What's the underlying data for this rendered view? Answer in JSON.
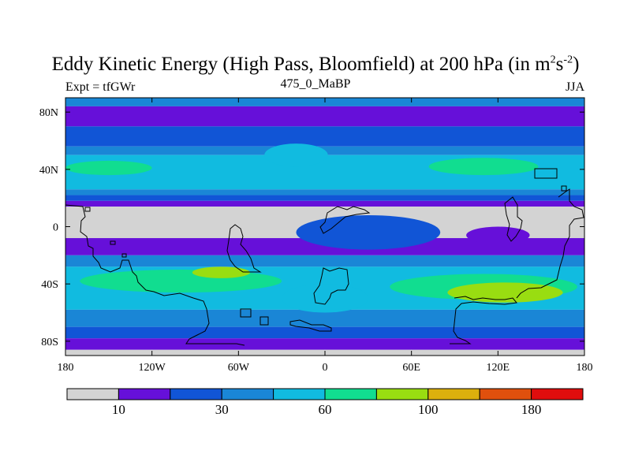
{
  "chart_data": {
    "type": "heatmap",
    "title": "Eddy Kinetic Energy (High Pass, Bloomfield) at 200 hPa (in m",
    "title_sup1": "2",
    "title_mid": "s",
    "title_sup2": "-2",
    "title_end": ")",
    "subtitle_left": "Expt = tfGWr",
    "subtitle_center": "475_0_MaBP",
    "subtitle_right": "JJA",
    "units": "m2 s-2",
    "pressure_level": "200 hPa",
    "x_range": [
      -180,
      180
    ],
    "y_range": [
      -90,
      90
    ],
    "x_ticks": [
      {
        "value": -180,
        "label": "180"
      },
      {
        "value": -120,
        "label": "120W"
      },
      {
        "value": -60,
        "label": "60W"
      },
      {
        "value": 0,
        "label": "0"
      },
      {
        "value": 60,
        "label": "60E"
      },
      {
        "value": 120,
        "label": "120E"
      },
      {
        "value": 180,
        "label": "180"
      }
    ],
    "y_ticks": [
      {
        "value": 80,
        "label": "80N"
      },
      {
        "value": 40,
        "label": "40N"
      },
      {
        "value": 0,
        "label": "0"
      },
      {
        "value": -40,
        "label": "40S"
      },
      {
        "value": -80,
        "label": "80S"
      }
    ],
    "levels": [
      "<10",
      "10-20",
      "20-30",
      "30-45",
      "45-60",
      "60-80",
      "80-100",
      "100-140",
      "140-180",
      ">180"
    ],
    "colors": [
      "#d3d3d3",
      "#6610d9",
      "#1155d6",
      "#1a86d6",
      "#11bbe0",
      "#11dd90",
      "#99dd11",
      "#dcb00d",
      "#e0500d",
      "#e00d0d"
    ],
    "colorbar_labels": [
      {
        "boundary": 1,
        "label": "10"
      },
      {
        "boundary": 3,
        "label": "30"
      },
      {
        "boundary": 5,
        "label": "60"
      },
      {
        "boundary": 7,
        "label": "100"
      },
      {
        "boundary": 9,
        "label": "180"
      }
    ],
    "latitude_bands": [
      {
        "lat_top": 90,
        "lat_bottom": 84,
        "level": 3
      },
      {
        "lat_top": 84,
        "lat_bottom": 70,
        "level": 1
      },
      {
        "lat_top": 70,
        "lat_bottom": 56,
        "level": 2
      },
      {
        "lat_top": 56,
        "lat_bottom": 50,
        "level": 3
      },
      {
        "lat_top": 50,
        "lat_bottom": 26,
        "level": 4
      },
      {
        "lat_top": 26,
        "lat_bottom": 22,
        "level": 3
      },
      {
        "lat_top": 22,
        "lat_bottom": 18,
        "level": 2
      },
      {
        "lat_top": 18,
        "lat_bottom": 14,
        "level": 1
      },
      {
        "lat_top": 14,
        "lat_bottom": -8,
        "level": 0
      },
      {
        "lat_top": -8,
        "lat_bottom": -20,
        "level": 1
      },
      {
        "lat_top": -20,
        "lat_bottom": -28,
        "level": 3
      },
      {
        "lat_top": -28,
        "lat_bottom": -58,
        "level": 4
      },
      {
        "lat_top": -58,
        "lat_bottom": -70,
        "level": 3
      },
      {
        "lat_top": -70,
        "lat_bottom": -78,
        "level": 2
      },
      {
        "lat_top": -78,
        "lat_bottom": -86,
        "level": 1
      },
      {
        "lat_top": -86,
        "lat_bottom": -90,
        "level": 0
      }
    ],
    "features": [
      {
        "name": "nh-jet-west",
        "level": 5,
        "lon": -150,
        "lat": 41,
        "rlon": 30,
        "rlat": 5
      },
      {
        "name": "nh-jet-east",
        "level": 5,
        "lon": 110,
        "lat": 42,
        "rlon": 38,
        "rlat": 6
      },
      {
        "name": "nh-storm-weak",
        "level": 4,
        "lon": -20,
        "lat": 50,
        "rlon": 22,
        "rlat": 8
      },
      {
        "name": "pacific-westerly-duct",
        "level": 2,
        "lon": 30,
        "lat": -4,
        "rlon": 50,
        "rlat": 12
      },
      {
        "name": "eastern-low-eke",
        "level": 1,
        "lon": 120,
        "lat": -6,
        "rlon": 22,
        "rlat": 6
      },
      {
        "name": "sh-jet-west",
        "level": 5,
        "lon": -100,
        "lat": -38,
        "rlon": 70,
        "rlat": 8
      },
      {
        "name": "sh-jet-west-core",
        "level": 6,
        "lon": -72,
        "lat": -32,
        "rlon": 20,
        "rlat": 4
      },
      {
        "name": "sh-jet-east",
        "level": 5,
        "lon": 110,
        "lat": -42,
        "rlon": 65,
        "rlat": 9
      },
      {
        "name": "sh-jet-east-core",
        "level": 6,
        "lon": 125,
        "lat": -46,
        "rlon": 40,
        "rlat": 7
      },
      {
        "name": "sh-quiet-atlantic",
        "level": 4,
        "lon": 0,
        "lat": -50,
        "rlon": 30,
        "rlat": 10
      }
    ]
  }
}
